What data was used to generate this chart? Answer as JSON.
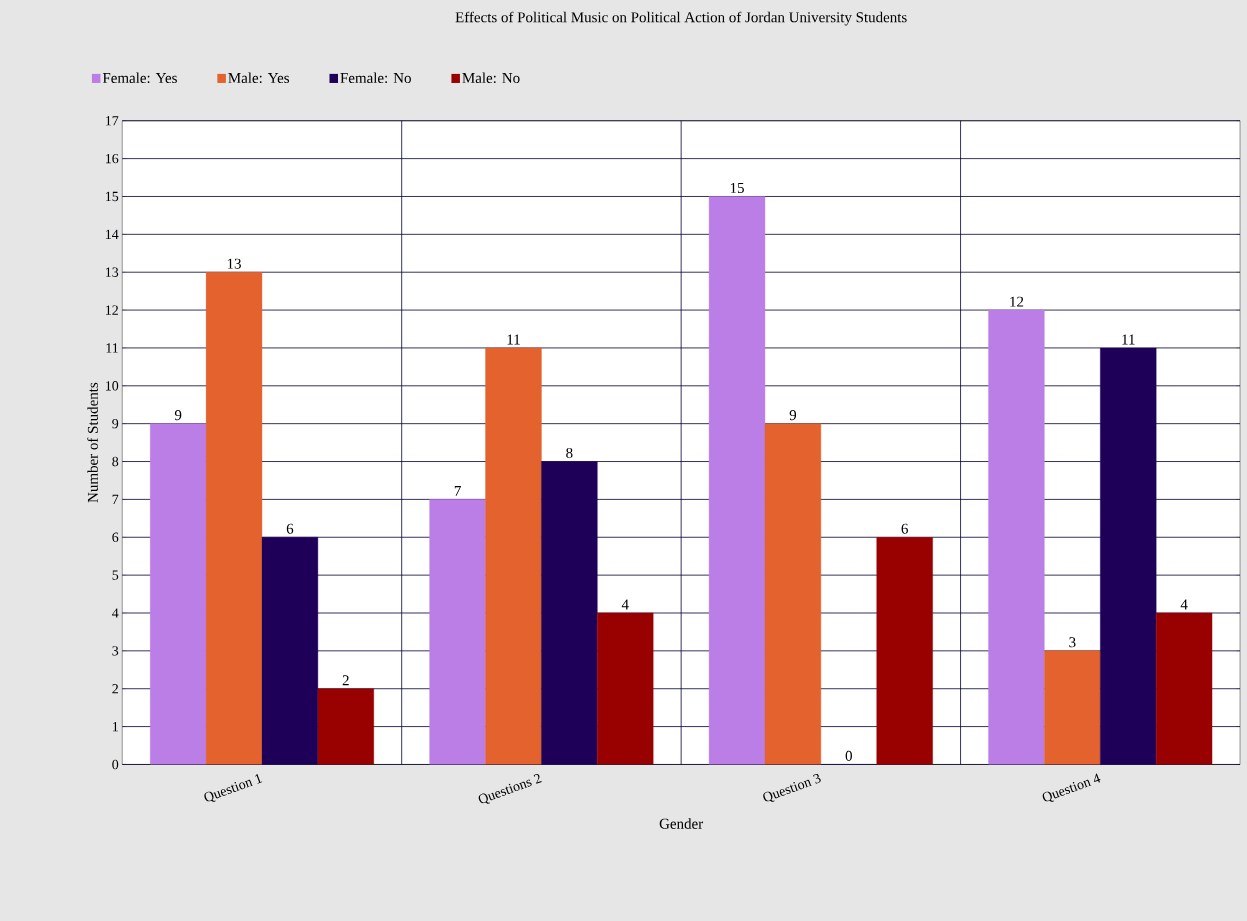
{
  "chart_data": {
    "type": "bar",
    "title": "Effects of Political Music on Political Action of Jordan University Students",
    "xlabel": "Gender",
    "ylabel": "Number of Students",
    "categories": [
      "Question 1",
      "Questions 2",
      "Question 3",
      "Question 4"
    ],
    "series": [
      {
        "name": "Female: Yes",
        "color": "#bb7de6",
        "values": [
          9,
          7,
          15,
          12
        ]
      },
      {
        "name": "Male: Yes",
        "color": "#e3622d",
        "values": [
          13,
          11,
          9,
          3
        ]
      },
      {
        "name": "Female: No",
        "color": "#1f0059",
        "values": [
          6,
          8,
          0,
          11
        ]
      },
      {
        "name": "Male: No",
        "color": "#990000",
        "values": [
          2,
          4,
          6,
          4
        ]
      }
    ],
    "ylim": [
      0,
      17
    ],
    "yticks": [
      0,
      1,
      2,
      3,
      4,
      5,
      6,
      7,
      8,
      9,
      10,
      11,
      12,
      13,
      14,
      15,
      16,
      17
    ],
    "grid": true,
    "legend": "top left",
    "data_labels": true
  }
}
